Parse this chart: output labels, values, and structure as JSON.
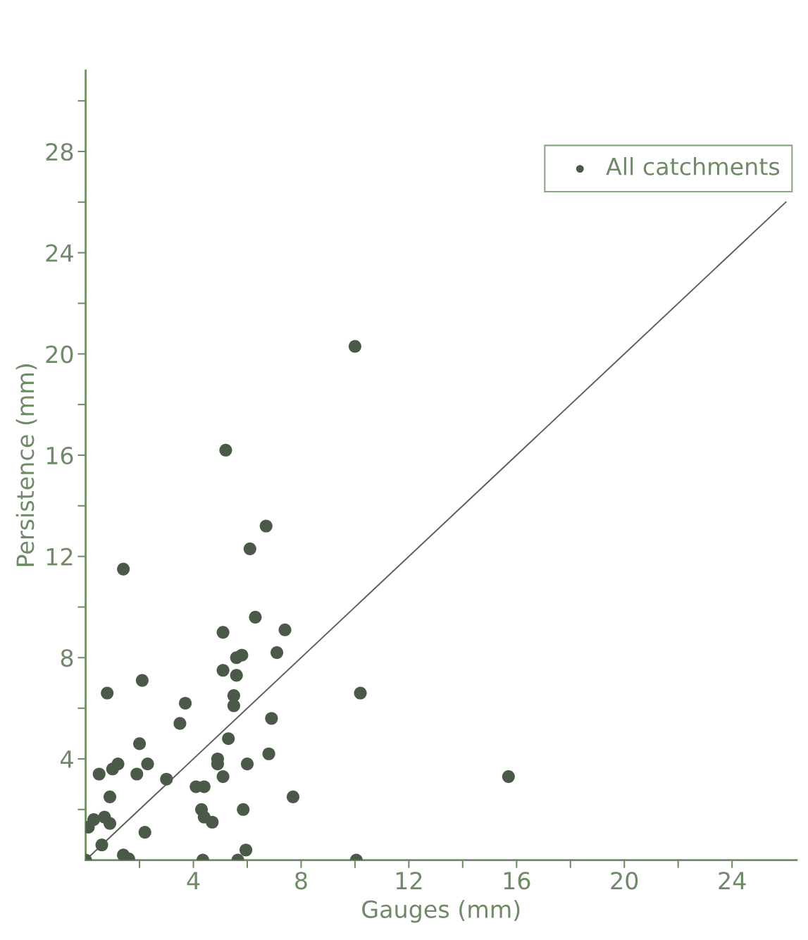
{
  "chart_data": {
    "type": "scatter",
    "xlabel": "Gauges (mm)",
    "ylabel": "Persistence (mm)",
    "xlim": [
      0,
      26.4
    ],
    "ylim": [
      0,
      31.2
    ],
    "xticks": [
      {
        "value": 2,
        "label": null
      },
      4,
      {
        "value": 6,
        "label": null
      },
      8,
      {
        "value": 10,
        "label": null
      },
      12,
      {
        "value": 14,
        "label": null
      },
      16,
      {
        "value": 18,
        "label": null
      },
      20,
      {
        "value": 22,
        "label": null
      },
      24
    ],
    "yticks": [
      {
        "value": 2,
        "label": null
      },
      4,
      {
        "value": 6,
        "label": null
      },
      8,
      {
        "value": 10,
        "label": null
      },
      12,
      {
        "value": 14,
        "label": null
      },
      16,
      {
        "value": 18,
        "label": null
      },
      20,
      {
        "value": 22,
        "label": null
      },
      24,
      {
        "value": 26,
        "label": null
      },
      28,
      {
        "value": 30,
        "label": null
      }
    ],
    "grid": false,
    "legend": "top right",
    "marker": "circle",
    "series": [
      {
        "name": "All catchments",
        "color": "#4b5a48",
        "x": [
          0,
          0.6,
          0.1,
          0.3,
          0.7,
          0.9,
          0.9,
          0.5,
          1.0,
          1.2,
          0.8,
          1.4,
          1.4,
          1.6,
          1.9,
          2.0,
          2.3,
          2.1,
          2.2,
          3.0,
          3.5,
          3.7,
          4.1,
          4.4,
          4.3,
          4.4,
          4.35,
          4.7,
          4.9,
          4.9,
          5.1,
          5.3,
          5.1,
          5.1,
          5.2,
          5.5,
          5.5,
          5.6,
          5.6,
          5.8,
          5.65,
          5.85,
          5.95,
          6.0,
          6.1,
          6.3,
          6.7,
          6.8,
          6.9,
          7.1,
          7.4,
          7.7,
          10.0,
          10.05,
          10.2,
          15.7
        ],
        "values": [
          0,
          0.6,
          1.3,
          1.6,
          1.7,
          1.45,
          2.5,
          3.4,
          3.6,
          3.8,
          6.6,
          11.5,
          0.2,
          0.05,
          3.4,
          4.6,
          3.8,
          7.1,
          1.1,
          3.2,
          5.4,
          6.2,
          2.9,
          2.9,
          2.0,
          1.7,
          0,
          1.5,
          3.8,
          4.0,
          3.3,
          4.8,
          9.0,
          7.5,
          16.2,
          6.5,
          6.1,
          7.3,
          8.0,
          8.1,
          0,
          2.0,
          0.4,
          3.8,
          12.3,
          9.6,
          13.2,
          4.2,
          5.6,
          8.2,
          9.1,
          2.5,
          20.3,
          0,
          6.6,
          3.3
        ]
      },
      {
        "type": "line",
        "marker": "none",
        "color": "#5a5f58",
        "x": [
          0,
          26
        ],
        "values": [
          0,
          26
        ]
      }
    ]
  }
}
